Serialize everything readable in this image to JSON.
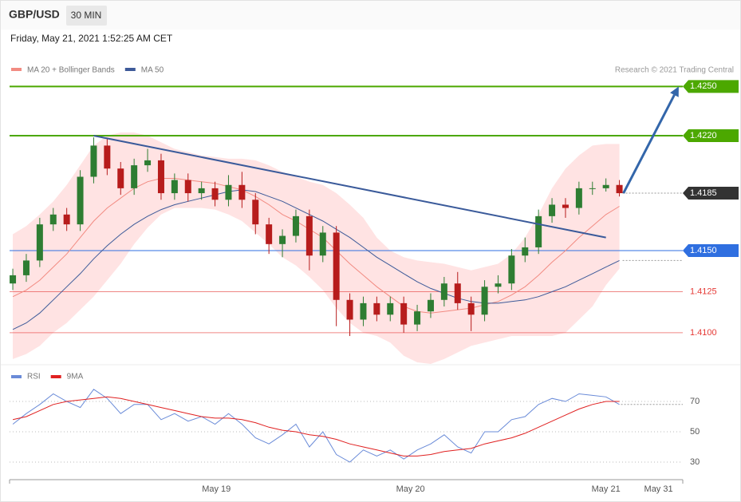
{
  "header": {
    "symbol": "GBP/USD",
    "interval": "30 MIN",
    "timestamp": "Friday, May 21, 2021 1:52:25 AM CET"
  },
  "chart_data": [
    {
      "type": "candlestick",
      "source": "Research © 2021 Trading Central",
      "up_color": "#2e7d32",
      "down_color": "#b71c1c",
      "xlim": [
        -0.24,
        49.7
      ],
      "ylim": [
        1.4081,
        1.4256
      ],
      "open": [
        1.413,
        1.4135,
        1.4144,
        1.4166,
        1.4172,
        1.4166,
        1.4195,
        1.4214,
        1.42,
        1.4188,
        1.4202,
        1.4205,
        1.4185,
        1.4193,
        1.4185,
        1.4188,
        1.4181,
        1.419,
        1.4181,
        1.4166,
        1.4154,
        1.4159,
        1.4171,
        1.4147,
        1.4161,
        1.412,
        1.4108,
        1.4118,
        1.4111,
        1.4118,
        1.4105,
        1.4113,
        1.412,
        1.413,
        1.4118,
        1.4111,
        1.4128,
        1.413,
        1.4147,
        1.4152,
        1.4171,
        1.4178,
        1.4176,
        1.4188,
        1.4188,
        1.419
      ],
      "high": [
        1.4139,
        1.4148,
        1.417,
        1.4176,
        1.4176,
        1.4199,
        1.4219,
        1.4218,
        1.4204,
        1.4206,
        1.4212,
        1.4209,
        1.4197,
        1.4197,
        1.4192,
        1.4192,
        1.4196,
        1.4198,
        1.4185,
        1.417,
        1.4163,
        1.4175,
        1.4175,
        1.4165,
        1.4165,
        1.4124,
        1.4122,
        1.4122,
        1.4122,
        1.4122,
        1.4117,
        1.4124,
        1.4134,
        1.4137,
        1.4122,
        1.4132,
        1.4135,
        1.4151,
        1.4158,
        1.4175,
        1.4182,
        1.4182,
        1.4192,
        1.4192,
        1.4194,
        1.4193
      ],
      "low": [
        1.4126,
        1.4131,
        1.414,
        1.4162,
        1.4162,
        1.4162,
        1.4191,
        1.4196,
        1.4184,
        1.4184,
        1.4198,
        1.4181,
        1.4181,
        1.418,
        1.4181,
        1.4177,
        1.4177,
        1.4176,
        1.416,
        1.4148,
        1.4146,
        1.4155,
        1.4138,
        1.4143,
        1.4104,
        1.4098,
        1.4104,
        1.4107,
        1.4107,
        1.41,
        1.4101,
        1.4109,
        1.4116,
        1.4114,
        1.4101,
        1.4107,
        1.4124,
        1.4126,
        1.4143,
        1.4148,
        1.4167,
        1.417,
        1.4172,
        1.4184,
        1.4186,
        1.4183
      ],
      "close": [
        1.4135,
        1.4144,
        1.4166,
        1.4172,
        1.4166,
        1.4195,
        1.4214,
        1.42,
        1.4188,
        1.4202,
        1.4205,
        1.4185,
        1.4193,
        1.4185,
        1.4188,
        1.4181,
        1.419,
        1.4181,
        1.4166,
        1.4154,
        1.4159,
        1.4171,
        1.4147,
        1.4161,
        1.412,
        1.4108,
        1.4118,
        1.4111,
        1.4118,
        1.4105,
        1.4113,
        1.412,
        1.413,
        1.4118,
        1.4111,
        1.4128,
        1.413,
        1.4147,
        1.4152,
        1.4171,
        1.4178,
        1.4176,
        1.4188,
        1.4188,
        1.419,
        1.4185
      ],
      "series": [
        {
          "name": "MA 20 + Bollinger Bands",
          "color": "#f28b82",
          "band_color": "#ffe3e3",
          "values": [
            1.4122,
            1.4126,
            1.4132,
            1.414,
            1.4148,
            1.4158,
            1.4168,
            1.4176,
            1.4182,
            1.4188,
            1.4192,
            1.4194,
            1.4194,
            1.4193,
            1.4192,
            1.4191,
            1.4189,
            1.4187,
            1.4183,
            1.4178,
            1.4172,
            1.4168,
            1.4163,
            1.4158,
            1.415,
            1.4142,
            1.4135,
            1.4128,
            1.4122,
            1.4116,
            1.4113,
            1.4112,
            1.4113,
            1.4114,
            1.4115,
            1.4117,
            1.4119,
            1.4123,
            1.4128,
            1.4135,
            1.4143,
            1.415,
            1.4158,
            1.4165,
            1.4172,
            1.4177
          ],
          "upper": [
            1.416,
            1.4165,
            1.4172,
            1.418,
            1.419,
            1.4202,
            1.4214,
            1.422,
            1.4222,
            1.4222,
            1.422,
            1.4216,
            1.4212,
            1.421,
            1.4208,
            1.4207,
            1.4206,
            1.4206,
            1.4205,
            1.4202,
            1.4198,
            1.4195,
            1.4192,
            1.419,
            1.4185,
            1.4178,
            1.417,
            1.4158,
            1.415,
            1.4146,
            1.4144,
            1.4143,
            1.4142,
            1.414,
            1.4138,
            1.414,
            1.4142,
            1.4148,
            1.4158,
            1.4172,
            1.4188,
            1.42,
            1.4208,
            1.4214,
            1.4215,
            1.4215
          ],
          "lower": [
            1.4084,
            1.4087,
            1.4092,
            1.41,
            1.4106,
            1.4114,
            1.4122,
            1.4132,
            1.4142,
            1.4154,
            1.4164,
            1.4172,
            1.4176,
            1.4176,
            1.4176,
            1.4175,
            1.4172,
            1.4168,
            1.4161,
            1.4154,
            1.4146,
            1.4141,
            1.4134,
            1.4126,
            1.4115,
            1.4106,
            1.41,
            1.4098,
            1.4094,
            1.4086,
            1.4082,
            1.4081,
            1.4084,
            1.4088,
            1.4092,
            1.4094,
            1.4096,
            1.4098,
            1.4098,
            1.4098,
            1.4098,
            1.41,
            1.4108,
            1.4116,
            1.4129,
            1.4139
          ]
        },
        {
          "name": "MA 50",
          "color": "#3d5a99",
          "values": [
            1.4102,
            1.4106,
            1.4112,
            1.412,
            1.4128,
            1.4136,
            1.4145,
            1.4153,
            1.416,
            1.4166,
            1.4171,
            1.4175,
            1.4178,
            1.418,
            1.4182,
            1.4184,
            1.4186,
            1.4187,
            1.4186,
            1.4183,
            1.418,
            1.4176,
            1.4172,
            1.4168,
            1.4163,
            1.4158,
            1.4152,
            1.4146,
            1.4141,
            1.4136,
            1.4131,
            1.4127,
            1.4124,
            1.4121,
            1.4119,
            1.4118,
            1.4118,
            1.4119,
            1.412,
            1.4122,
            1.4125,
            1.4128,
            1.4132,
            1.4136,
            1.414,
            1.4144
          ]
        }
      ],
      "levels": [
        {
          "value": 1.425,
          "label": "1.4250",
          "color": "#4ca800",
          "tag": true
        },
        {
          "value": 1.422,
          "label": "1.4220",
          "color": "#4ca800",
          "tag": true
        },
        {
          "value": 1.4185,
          "label": "1.4185",
          "color": "#333333",
          "tag": true
        },
        {
          "value": 1.415,
          "label": "1.4150",
          "color": "#2f6fe0",
          "tag": true
        },
        {
          "value": 1.4125,
          "label": "1.4125",
          "color": "#e53935",
          "tag": false
        },
        {
          "value": 1.41,
          "label": "1.4100",
          "color": "#e53935",
          "tag": false
        }
      ],
      "trendline": {
        "color": "#3a5a9a",
        "x": [
          6,
          44
        ],
        "y": [
          1.422,
          1.4158
        ]
      },
      "arrow": {
        "color": "#3366aa",
        "x": [
          45.3,
          49.4
        ],
        "y": [
          1.4185,
          1.425
        ]
      }
    },
    {
      "type": "line",
      "xlim": [
        -0.24,
        49.7
      ],
      "ylim": [
        19.5,
        92.1
      ],
      "yticks": [
        70,
        50,
        30
      ],
      "xticks": [
        {
          "value": 15.1,
          "label": "May 19"
        },
        {
          "value": 29.5,
          "label": "May 20"
        },
        {
          "value": 44.0,
          "label": "May 21"
        },
        {
          "value": 47.9,
          "label": "May 31"
        }
      ],
      "series": [
        {
          "name": "RSI",
          "color": "#6a8bd8",
          "values": [
            55,
            62,
            68,
            75,
            70,
            66,
            78,
            72,
            62,
            68,
            68,
            58,
            62,
            57,
            60,
            55,
            62,
            55,
            46,
            42,
            48,
            55,
            40,
            50,
            35,
            30,
            38,
            34,
            38,
            32,
            38,
            42,
            48,
            40,
            36,
            50,
            50,
            58,
            60,
            68,
            72,
            70,
            75,
            74,
            73,
            68
          ]
        },
        {
          "name": "9MA",
          "color": "#e02020",
          "values": [
            58,
            60,
            64,
            68,
            70,
            71,
            72,
            73,
            72,
            70,
            68,
            66,
            64,
            62,
            60,
            59,
            59,
            58,
            56,
            53,
            51,
            50,
            48,
            47,
            45,
            42,
            40,
            38,
            36,
            34,
            34,
            35,
            37,
            38,
            39,
            42,
            44,
            46,
            49,
            53,
            57,
            61,
            65,
            68,
            70,
            70
          ]
        }
      ]
    }
  ]
}
